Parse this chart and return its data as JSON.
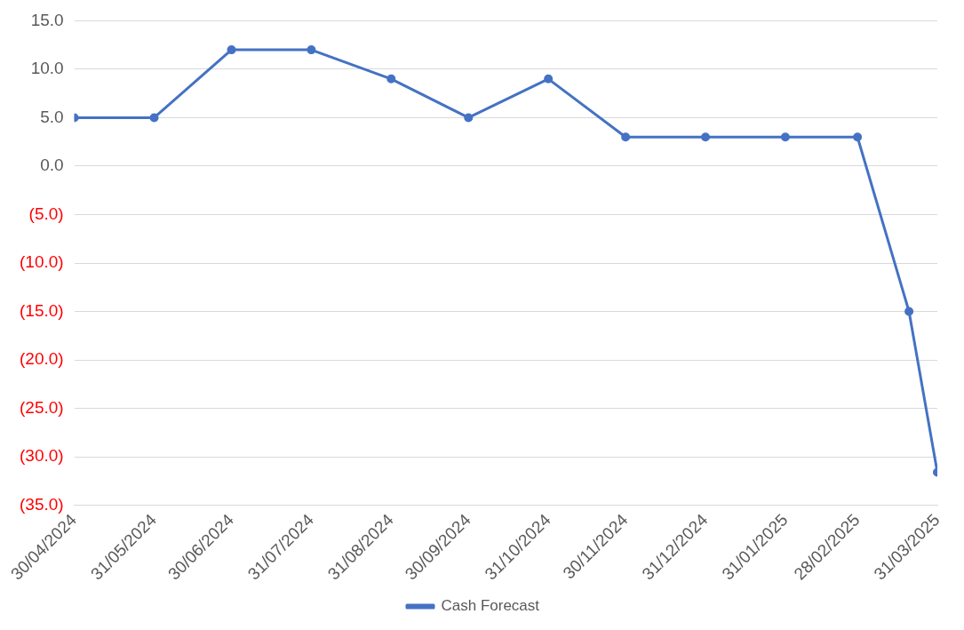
{
  "chart_data": {
    "type": "line",
    "x": [
      "2024-04-30",
      "2024-05-31",
      "2024-06-30",
      "2024-07-31",
      "2024-08-31",
      "2024-09-30",
      "2024-10-31",
      "2024-11-30",
      "2024-12-31",
      "2025-01-31",
      "2025-02-28",
      "2025-03-20",
      "2025-03-31"
    ],
    "series": [
      {
        "name": "Cash Forecast",
        "color": "#4472c4",
        "values": [
          5,
          5,
          12,
          12,
          9,
          5,
          9,
          3,
          3,
          3,
          3,
          -15,
          -31.6
        ]
      }
    ],
    "xlim": [
      "2024-04-30",
      "2025-03-31"
    ],
    "xticks": [
      {
        "value": "2024-04-30",
        "label": "30/04/2024"
      },
      {
        "value": "2024-05-31",
        "label": "31/05/2024"
      },
      {
        "value": "2024-06-30",
        "label": "30/06/2024"
      },
      {
        "value": "2024-07-31",
        "label": "31/07/2024"
      },
      {
        "value": "2024-08-31",
        "label": "31/08/2024"
      },
      {
        "value": "2024-09-30",
        "label": "30/09/2024"
      },
      {
        "value": "2024-10-31",
        "label": "31/10/2024"
      },
      {
        "value": "2024-11-30",
        "label": "30/11/2024"
      },
      {
        "value": "2024-12-31",
        "label": "31/12/2024"
      },
      {
        "value": "2025-01-31",
        "label": "31/01/2025"
      },
      {
        "value": "2025-02-28",
        "label": "28/02/2025"
      },
      {
        "value": "2025-03-31",
        "label": "31/03/2025"
      }
    ],
    "ylim": [
      -35,
      15
    ],
    "yticks": [
      {
        "value": -35,
        "label": "(35.0)"
      },
      {
        "value": -30,
        "label": "(30.0)"
      },
      {
        "value": -25,
        "label": "(25.0)"
      },
      {
        "value": -20,
        "label": "(20.0)"
      },
      {
        "value": -15,
        "label": "(15.0)"
      },
      {
        "value": -10,
        "label": "(10.0)"
      },
      {
        "value": -5,
        "label": "(5.0)"
      },
      {
        "value": 0,
        "label": "0.0"
      },
      {
        "value": 5,
        "label": "5.0"
      },
      {
        "value": 10,
        "label": "10.0"
      },
      {
        "value": 15,
        "label": "15.0"
      }
    ],
    "grid": "y",
    "legend": "bottom",
    "marker": "circle",
    "line_style": "solid"
  }
}
